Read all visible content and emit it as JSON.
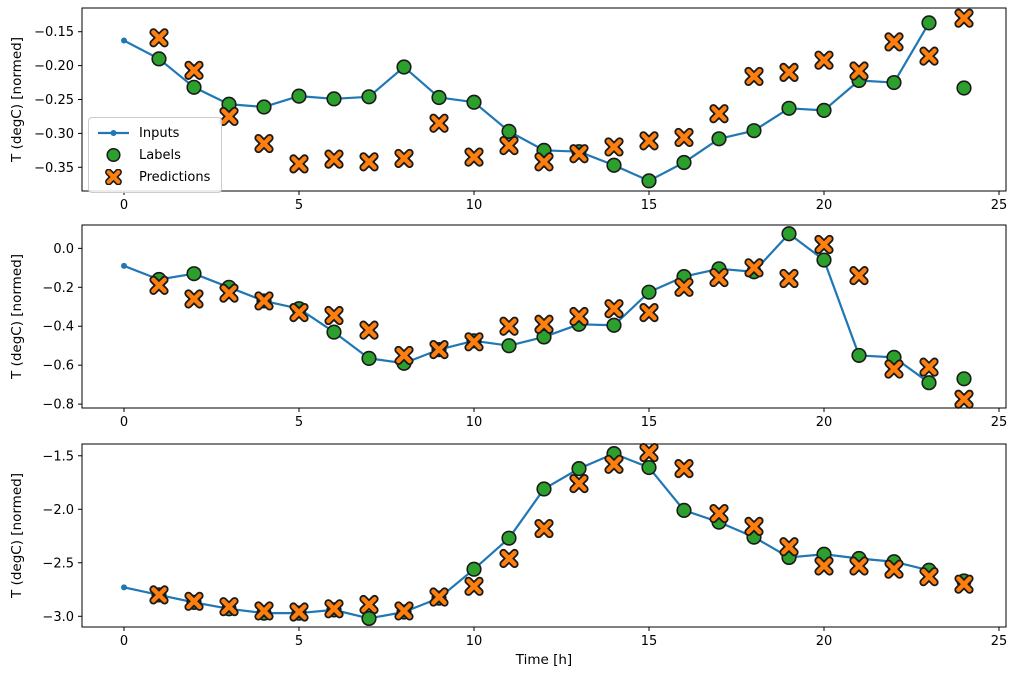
{
  "figure": {
    "xlabel": "Time [h]",
    "ylabel": "T (degC) [normed]",
    "colors": {
      "inputs": "#1f77b4",
      "labels": "#2ca02c",
      "predictions": "#ff7f0e",
      "marker_edge": "#1a1a1a",
      "spine": "#000000",
      "legend_border": "#cccccc"
    },
    "legend": {
      "position": "upper left of subplot 1",
      "items": [
        {
          "label": "Inputs",
          "marker": "line-with-dot",
          "color": "#1f77b4"
        },
        {
          "label": "Labels",
          "marker": "circle",
          "color": "#2ca02c"
        },
        {
          "label": "Predictions",
          "marker": "X",
          "color": "#ff7f0e"
        }
      ]
    }
  },
  "chart_data": [
    {
      "type": "line",
      "subtype": "line+scatter",
      "title": "",
      "xlabel": "",
      "ylabel": "T (degC) [normed]",
      "grid": false,
      "xlim": [
        -1.2,
        25.2
      ],
      "ylim": [
        -0.385,
        -0.115
      ],
      "xticks": [
        {
          "value": 0,
          "label": "0"
        },
        {
          "value": 5,
          "label": "5"
        },
        {
          "value": 10,
          "label": "10"
        },
        {
          "value": 15,
          "label": "15"
        },
        {
          "value": 20,
          "label": "20"
        },
        {
          "value": 25,
          "label": "25"
        }
      ],
      "yticks": [
        {
          "value": -0.15,
          "label": "−0.15"
        },
        {
          "value": -0.2,
          "label": "−0.20"
        },
        {
          "value": -0.25,
          "label": "−0.25"
        },
        {
          "value": -0.3,
          "label": "−0.30"
        },
        {
          "value": -0.35,
          "label": "−0.35"
        }
      ],
      "series": [
        {
          "name": "Inputs",
          "x": [
            0,
            1,
            2,
            3,
            4,
            5,
            6,
            7,
            8,
            9,
            10,
            11,
            12,
            13,
            14,
            15,
            16,
            17,
            18,
            19,
            20,
            21,
            22,
            23
          ],
          "y": [
            -0.163,
            -0.19,
            -0.232,
            -0.257,
            -0.261,
            -0.245,
            -0.249,
            -0.246,
            -0.202,
            -0.247,
            -0.254,
            -0.297,
            -0.325,
            -0.327,
            -0.347,
            -0.37,
            -0.343,
            -0.308,
            -0.296,
            -0.263,
            -0.266,
            -0.222,
            -0.225,
            -0.137
          ]
        },
        {
          "name": "Labels",
          "x": [
            1,
            2,
            3,
            4,
            5,
            6,
            7,
            8,
            9,
            10,
            11,
            12,
            13,
            14,
            15,
            16,
            17,
            18,
            19,
            20,
            21,
            22,
            23,
            24
          ],
          "y": [
            -0.19,
            -0.232,
            -0.257,
            -0.261,
            -0.245,
            -0.249,
            -0.246,
            -0.202,
            -0.247,
            -0.254,
            -0.297,
            -0.325,
            -0.327,
            -0.347,
            -0.37,
            -0.343,
            -0.308,
            -0.296,
            -0.263,
            -0.266,
            -0.222,
            -0.225,
            -0.137,
            -0.233
          ]
        },
        {
          "name": "Predictions",
          "x": [
            1,
            2,
            3,
            4,
            5,
            6,
            7,
            8,
            9,
            10,
            11,
            12,
            13,
            14,
            15,
            16,
            17,
            18,
            19,
            20,
            21,
            22,
            23,
            24
          ],
          "y": [
            -0.159,
            -0.207,
            -0.275,
            -0.315,
            -0.345,
            -0.338,
            -0.342,
            -0.337,
            -0.285,
            -0.335,
            -0.318,
            -0.342,
            -0.33,
            -0.32,
            -0.311,
            -0.306,
            -0.271,
            -0.216,
            -0.21,
            -0.192,
            -0.208,
            -0.165,
            -0.186,
            -0.13
          ]
        }
      ]
    },
    {
      "type": "line",
      "subtype": "line+scatter",
      "title": "",
      "xlabel": "",
      "ylabel": "T (degC) [normed]",
      "grid": false,
      "xlim": [
        -1.2,
        25.2
      ],
      "ylim": [
        -0.82,
        0.12
      ],
      "xticks": [
        {
          "value": 0,
          "label": "0"
        },
        {
          "value": 5,
          "label": "5"
        },
        {
          "value": 10,
          "label": "10"
        },
        {
          "value": 15,
          "label": "15"
        },
        {
          "value": 20,
          "label": "20"
        },
        {
          "value": 25,
          "label": "25"
        }
      ],
      "yticks": [
        {
          "value": 0.0,
          "label": "0.0"
        },
        {
          "value": -0.2,
          "label": "−0.2"
        },
        {
          "value": -0.4,
          "label": "−0.4"
        },
        {
          "value": -0.6,
          "label": "−0.6"
        },
        {
          "value": -0.8,
          "label": "−0.8"
        }
      ],
      "series": [
        {
          "name": "Inputs",
          "x": [
            0,
            1,
            2,
            3,
            4,
            5,
            6,
            7,
            8,
            9,
            10,
            11,
            12,
            13,
            14,
            15,
            16,
            17,
            18,
            19,
            20,
            21,
            22,
            23
          ],
          "y": [
            -0.09,
            -0.16,
            -0.13,
            -0.2,
            -0.27,
            -0.31,
            -0.43,
            -0.565,
            -0.59,
            -0.52,
            -0.475,
            -0.5,
            -0.455,
            -0.39,
            -0.395,
            -0.225,
            -0.145,
            -0.105,
            -0.12,
            0.075,
            -0.06,
            -0.55,
            -0.56,
            -0.69
          ]
        },
        {
          "name": "Labels",
          "x": [
            1,
            2,
            3,
            4,
            5,
            6,
            7,
            8,
            9,
            10,
            11,
            12,
            13,
            14,
            15,
            16,
            17,
            18,
            19,
            20,
            21,
            22,
            23,
            24
          ],
          "y": [
            -0.16,
            -0.13,
            -0.2,
            -0.27,
            -0.31,
            -0.43,
            -0.565,
            -0.59,
            -0.52,
            -0.475,
            -0.5,
            -0.455,
            -0.39,
            -0.395,
            -0.225,
            -0.145,
            -0.105,
            -0.12,
            0.075,
            -0.06,
            -0.55,
            -0.56,
            -0.69,
            -0.67
          ]
        },
        {
          "name": "Predictions",
          "x": [
            1,
            2,
            3,
            4,
            5,
            6,
            7,
            8,
            9,
            10,
            11,
            12,
            13,
            14,
            15,
            16,
            17,
            18,
            19,
            20,
            21,
            22,
            23,
            24
          ],
          "y": [
            -0.19,
            -0.26,
            -0.23,
            -0.27,
            -0.33,
            -0.345,
            -0.42,
            -0.55,
            -0.52,
            -0.48,
            -0.4,
            -0.39,
            -0.35,
            -0.31,
            -0.33,
            -0.2,
            -0.15,
            -0.1,
            -0.155,
            0.02,
            -0.14,
            -0.62,
            -0.61,
            -0.775
          ]
        }
      ]
    },
    {
      "type": "line",
      "subtype": "line+scatter",
      "title": "",
      "xlabel": "Time [h]",
      "ylabel": "T (degC) [normed]",
      "grid": false,
      "xlim": [
        -1.2,
        25.2
      ],
      "ylim": [
        -3.1,
        -1.39
      ],
      "xticks": [
        {
          "value": 0,
          "label": "0"
        },
        {
          "value": 5,
          "label": "5"
        },
        {
          "value": 10,
          "label": "10"
        },
        {
          "value": 15,
          "label": "15"
        },
        {
          "value": 20,
          "label": "20"
        },
        {
          "value": 25,
          "label": "25"
        }
      ],
      "yticks": [
        {
          "value": -1.5,
          "label": "−1.5"
        },
        {
          "value": -2.0,
          "label": "−2.0"
        },
        {
          "value": -2.5,
          "label": "−2.5"
        },
        {
          "value": -3.0,
          "label": "−3.0"
        }
      ],
      "series": [
        {
          "name": "Inputs",
          "x": [
            0,
            1,
            2,
            3,
            4,
            5,
            6,
            7,
            8,
            9,
            10,
            11,
            12,
            13,
            14,
            15,
            16,
            17,
            18,
            19,
            20,
            21,
            22,
            23
          ],
          "y": [
            -2.73,
            -2.8,
            -2.87,
            -2.93,
            -2.97,
            -2.97,
            -2.94,
            -3.02,
            -2.96,
            -2.83,
            -2.56,
            -2.27,
            -1.81,
            -1.62,
            -1.48,
            -1.61,
            -2.01,
            -2.12,
            -2.26,
            -2.45,
            -2.42,
            -2.46,
            -2.49,
            -2.57
          ]
        },
        {
          "name": "Labels",
          "x": [
            1,
            2,
            3,
            4,
            5,
            6,
            7,
            8,
            9,
            10,
            11,
            12,
            13,
            14,
            15,
            16,
            17,
            18,
            19,
            20,
            21,
            22,
            23,
            24
          ],
          "y": [
            -2.8,
            -2.87,
            -2.93,
            -2.97,
            -2.97,
            -2.94,
            -3.02,
            -2.96,
            -2.83,
            -2.56,
            -2.27,
            -1.81,
            -1.62,
            -1.48,
            -1.61,
            -2.01,
            -2.12,
            -2.26,
            -2.45,
            -2.42,
            -2.46,
            -2.49,
            -2.57,
            -2.67
          ]
        },
        {
          "name": "Predictions",
          "x": [
            1,
            2,
            3,
            4,
            5,
            6,
            7,
            8,
            9,
            10,
            11,
            12,
            13,
            14,
            15,
            16,
            17,
            18,
            19,
            20,
            21,
            22,
            23,
            24
          ],
          "y": [
            -2.8,
            -2.86,
            -2.91,
            -2.95,
            -2.96,
            -2.93,
            -2.89,
            -2.95,
            -2.82,
            -2.72,
            -2.46,
            -2.18,
            -1.76,
            -1.58,
            -1.47,
            -1.62,
            -2.04,
            -2.16,
            -2.35,
            -2.53,
            -2.53,
            -2.56,
            -2.63,
            -2.7
          ]
        }
      ]
    }
  ]
}
